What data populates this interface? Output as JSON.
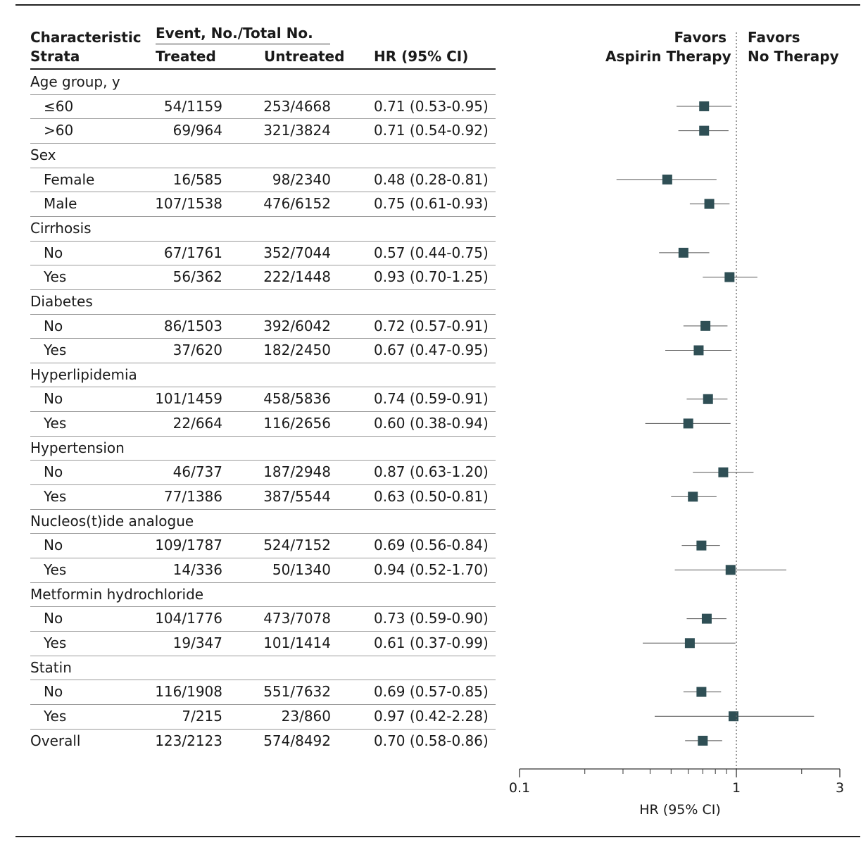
{
  "header": {
    "characteristic": "Characteristic",
    "strata": "Strata",
    "event_group": "Event, No./Total No.",
    "treated": "Treated",
    "untreated": "Untreated",
    "hr": "HR (95% CI)",
    "favors_left_1": "Favors",
    "favors_left_2": "Aspirin Therapy",
    "favors_right_1": "Favors",
    "favors_right_2": "No Therapy"
  },
  "rows": [
    {
      "kind": "group",
      "label": "Age group, y"
    },
    {
      "kind": "sub",
      "label": "≤60",
      "treated": "54/1159",
      "untreated": "253/4668",
      "hr_text": "0.71 (0.53-0.95)",
      "hr": 0.71,
      "lo": 0.53,
      "hi": 0.95
    },
    {
      "kind": "sub",
      "label": ">60",
      "treated": "69/964",
      "untreated": "321/3824",
      "hr_text": "0.71 (0.54-0.92)",
      "hr": 0.71,
      "lo": 0.54,
      "hi": 0.92
    },
    {
      "kind": "group",
      "label": "Sex"
    },
    {
      "kind": "sub",
      "label": "Female",
      "treated": "16/585",
      "untreated": "98/2340",
      "hr_text": "0.48 (0.28-0.81)",
      "hr": 0.48,
      "lo": 0.28,
      "hi": 0.81
    },
    {
      "kind": "sub",
      "label": "Male",
      "treated": "107/1538",
      "untreated": "476/6152",
      "hr_text": "0.75 (0.61-0.93)",
      "hr": 0.75,
      "lo": 0.61,
      "hi": 0.93
    },
    {
      "kind": "group",
      "label": "Cirrhosis"
    },
    {
      "kind": "sub",
      "label": "No",
      "treated": "67/1761",
      "untreated": "352/7044",
      "hr_text": "0.57 (0.44-0.75)",
      "hr": 0.57,
      "lo": 0.44,
      "hi": 0.75
    },
    {
      "kind": "sub",
      "label": "Yes",
      "treated": "56/362",
      "untreated": "222/1448",
      "hr_text": "0.93 (0.70-1.25)",
      "hr": 0.93,
      "lo": 0.7,
      "hi": 1.25
    },
    {
      "kind": "group",
      "label": "Diabetes"
    },
    {
      "kind": "sub",
      "label": "No",
      "treated": "86/1503",
      "untreated": "392/6042",
      "hr_text": "0.72 (0.57-0.91)",
      "hr": 0.72,
      "lo": 0.57,
      "hi": 0.91
    },
    {
      "kind": "sub",
      "label": "Yes",
      "treated": "37/620",
      "untreated": "182/2450",
      "hr_text": "0.67 (0.47-0.95)",
      "hr": 0.67,
      "lo": 0.47,
      "hi": 0.95
    },
    {
      "kind": "group",
      "label": "Hyperlipidemia"
    },
    {
      "kind": "sub",
      "label": "No",
      "treated": "101/1459",
      "untreated": "458/5836",
      "hr_text": "0.74 (0.59-0.91)",
      "hr": 0.74,
      "lo": 0.59,
      "hi": 0.91
    },
    {
      "kind": "sub",
      "label": "Yes",
      "treated": "22/664",
      "untreated": "116/2656",
      "hr_text": "0.60 (0.38-0.94)",
      "hr": 0.6,
      "lo": 0.38,
      "hi": 0.94
    },
    {
      "kind": "group",
      "label": "Hypertension"
    },
    {
      "kind": "sub",
      "label": "No",
      "treated": "46/737",
      "untreated": "187/2948",
      "hr_text": "0.87 (0.63-1.20)",
      "hr": 0.87,
      "lo": 0.63,
      "hi": 1.2
    },
    {
      "kind": "sub",
      "label": "Yes",
      "treated": "77/1386",
      "untreated": "387/5544",
      "hr_text": "0.63 (0.50-0.81)",
      "hr": 0.63,
      "lo": 0.5,
      "hi": 0.81
    },
    {
      "kind": "group",
      "label": "Nucleos(t)ide analogue"
    },
    {
      "kind": "sub",
      "label": "No",
      "treated": "109/1787",
      "untreated": "524/7152",
      "hr_text": "0.69 (0.56-0.84)",
      "hr": 0.69,
      "lo": 0.56,
      "hi": 0.84
    },
    {
      "kind": "sub",
      "label": "Yes",
      "treated": "14/336",
      "untreated": "50/1340",
      "hr_text": "0.94 (0.52-1.70)",
      "hr": 0.94,
      "lo": 0.52,
      "hi": 1.7
    },
    {
      "kind": "group",
      "label": "Metformin hydrochloride"
    },
    {
      "kind": "sub",
      "label": "No",
      "treated": "104/1776",
      "untreated": "473/7078",
      "hr_text": "0.73 (0.59-0.90)",
      "hr": 0.73,
      "lo": 0.59,
      "hi": 0.9
    },
    {
      "kind": "sub",
      "label": "Yes",
      "treated": "19/347",
      "untreated": "101/1414",
      "hr_text": "0.61 (0.37-0.99)",
      "hr": 0.61,
      "lo": 0.37,
      "hi": 0.99
    },
    {
      "kind": "group",
      "label": "Statin"
    },
    {
      "kind": "sub",
      "label": "No",
      "treated": "116/1908",
      "untreated": "551/7632",
      "hr_text": "0.69 (0.57-0.85)",
      "hr": 0.69,
      "lo": 0.57,
      "hi": 0.85
    },
    {
      "kind": "sub",
      "label": "Yes",
      "treated": "7/215",
      "untreated": "23/860",
      "hr_text": "0.97 (0.42-2.28)",
      "hr": 0.97,
      "lo": 0.42,
      "hi": 2.28
    },
    {
      "kind": "overall",
      "label": "Overall",
      "treated": "123/2123",
      "untreated": "574/8492",
      "hr_text": "0.70 (0.58-0.86)",
      "hr": 0.7,
      "lo": 0.58,
      "hi": 0.86
    }
  ],
  "chart_data": {
    "type": "forest",
    "scale": "log",
    "xlim": [
      0.1,
      3
    ],
    "reference_line": 1,
    "xlabel": "HR (95% CI)",
    "tick_labels": [
      "0.1",
      "1",
      "3"
    ],
    "marker_color": "#2f4f55"
  }
}
